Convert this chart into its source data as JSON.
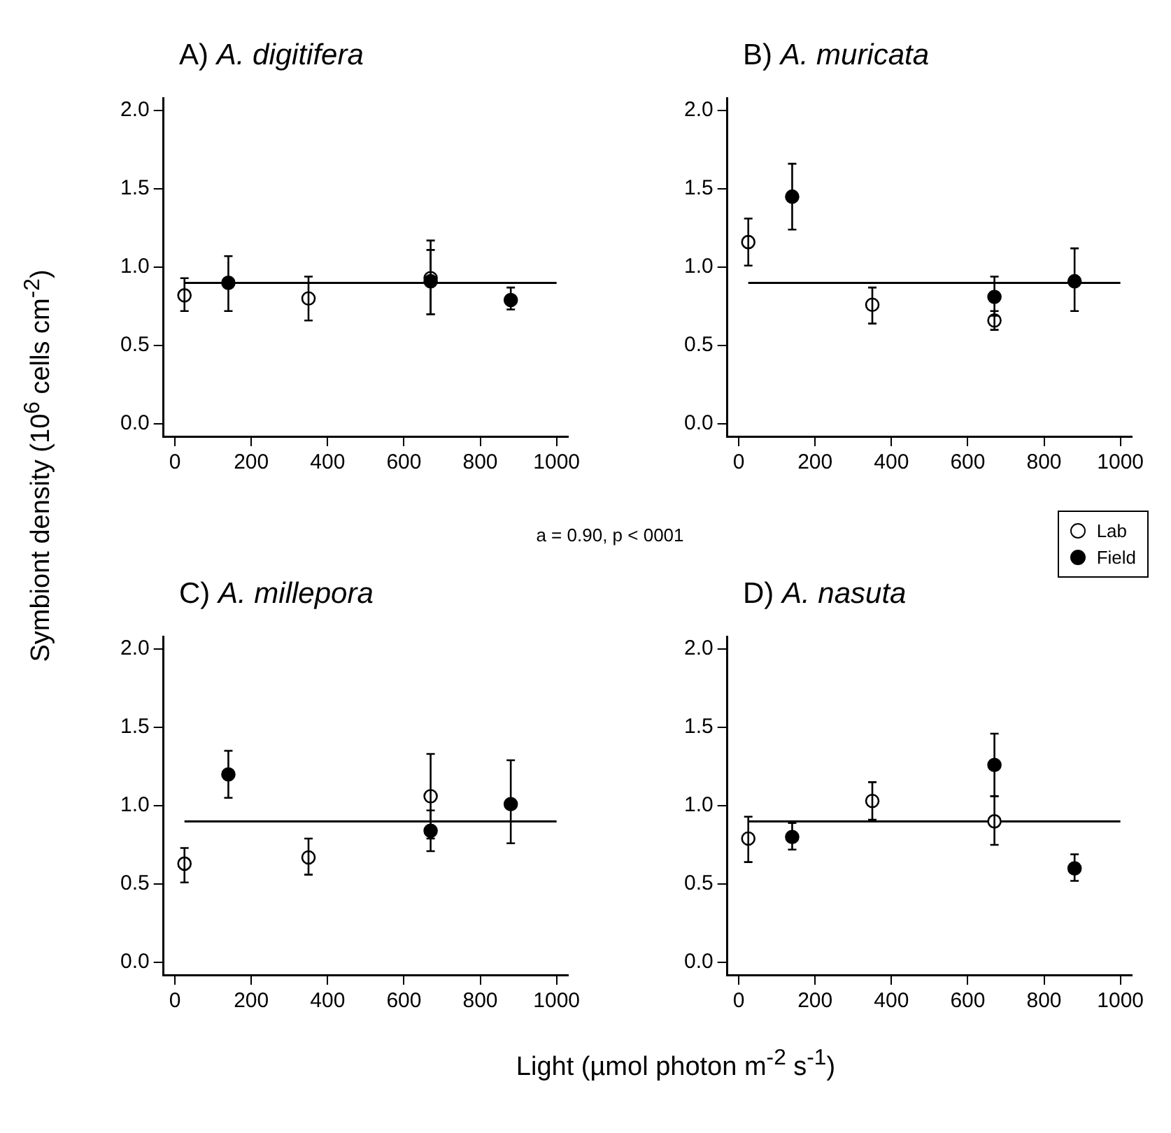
{
  "chart_data": [
    {
      "type": "scatter",
      "title": "A) A. digitifera",
      "ylabel": "Symbiont density (10$^{6}$ cells cm$^{-2}$)",
      "xlim": [
        -30,
        1030
      ],
      "ylim": [
        -0.08,
        2.08
      ],
      "xticks": [
        0,
        200,
        400,
        600,
        800,
        1000
      ],
      "yticks": [
        {
          "value": 0,
          "label": "0.0"
        },
        {
          "value": 0.5,
          "label": "0.5"
        },
        {
          "value": 1,
          "label": "1.0"
        },
        {
          "value": 1.5,
          "label": "1.5"
        },
        {
          "value": 2,
          "label": "2.0"
        }
      ],
      "grid": false,
      "legend": false,
      "marker": "circle",
      "series": [
        {
          "color": "#ffffff",
          "x": [
            25,
            350,
            670
          ],
          "values": [
            0.82,
            0.8,
            0.93
          ],
          "errors": [
            [
              0.72,
              0.93
            ],
            [
              0.66,
              0.94
            ],
            [
              0.7,
              1.17
            ]
          ]
        },
        {
          "color": "#000000",
          "x": [
            140,
            670,
            880
          ],
          "values": [
            0.9,
            0.91,
            0.79
          ],
          "errors": [
            [
              0.72,
              1.07
            ],
            [
              0.7,
              1.11
            ],
            [
              0.73,
              0.87
            ]
          ]
        },
        {
          "type": "line",
          "marker": "none",
          "color": "#000000",
          "x": [
            25,
            1000
          ],
          "values": [
            0.9,
            0.9
          ]
        }
      ]
    },
    {
      "type": "scatter",
      "title": "B) A. muricata",
      "annotations": [
        "a = 0.90, p < 0001"
      ],
      "xlim": [
        -30,
        1030
      ],
      "ylim": [
        -0.08,
        2.08
      ],
      "xticks": [
        0,
        200,
        400,
        600,
        800,
        1000
      ],
      "yticks": [
        {
          "value": 0,
          "label": "0.0"
        },
        {
          "value": 0.5,
          "label": "0.5"
        },
        {
          "value": 1,
          "label": "1.0"
        },
        {
          "value": 1.5,
          "label": "1.5"
        },
        {
          "value": 2,
          "label": "2.0"
        }
      ],
      "grid": false,
      "legend": "bottom right",
      "marker": "circle",
      "series": [
        {
          "name": "Lab",
          "color": "#ffffff",
          "x": [
            25,
            350,
            670
          ],
          "values": [
            1.16,
            0.76,
            0.66
          ],
          "errors": [
            [
              1.01,
              1.31
            ],
            [
              0.64,
              0.87
            ],
            [
              0.6,
              0.72
            ]
          ]
        },
        {
          "name": "Field",
          "color": "#000000",
          "x": [
            140,
            670,
            880
          ],
          "values": [
            1.45,
            0.81,
            0.91
          ],
          "errors": [
            [
              1.24,
              1.66
            ],
            [
              0.69,
              0.94
            ],
            [
              0.72,
              1.12
            ]
          ]
        },
        {
          "type": "line",
          "marker": "none",
          "color": "#000000",
          "x": [
            25,
            1000
          ],
          "values": [
            0.9,
            0.9
          ]
        }
      ]
    },
    {
      "type": "scatter",
      "title": "C) A. millepora",
      "xlabel": "Light (µmol photon m$^{-2}$ s$^{-1}$)",
      "xlim": [
        -30,
        1030
      ],
      "ylim": [
        -0.08,
        2.08
      ],
      "xticks": [
        0,
        200,
        400,
        600,
        800,
        1000
      ],
      "yticks": [
        {
          "value": 0,
          "label": "0.0"
        },
        {
          "value": 0.5,
          "label": "0.5"
        },
        {
          "value": 1,
          "label": "1.0"
        },
        {
          "value": 1.5,
          "label": "1.5"
        },
        {
          "value": 2,
          "label": "2.0"
        }
      ],
      "grid": false,
      "legend": false,
      "marker": "circle",
      "series": [
        {
          "color": "#ffffff",
          "x": [
            25,
            350,
            670
          ],
          "values": [
            0.63,
            0.67,
            1.06
          ],
          "errors": [
            [
              0.51,
              0.73
            ],
            [
              0.56,
              0.79
            ],
            [
              0.79,
              1.33
            ]
          ]
        },
        {
          "color": "#000000",
          "x": [
            140,
            670,
            880
          ],
          "values": [
            1.2,
            0.84,
            1.01
          ],
          "errors": [
            [
              1.05,
              1.35
            ],
            [
              0.71,
              0.97
            ],
            [
              0.76,
              1.29
            ]
          ]
        },
        {
          "type": "line",
          "marker": "none",
          "color": "#000000",
          "x": [
            25,
            1000
          ],
          "values": [
            0.9,
            0.9
          ]
        }
      ]
    },
    {
      "type": "scatter",
      "title": "D) A. nasuta",
      "xlim": [
        -30,
        1030
      ],
      "ylim": [
        -0.08,
        2.08
      ],
      "xticks": [
        0,
        200,
        400,
        600,
        800,
        1000
      ],
      "yticks": [
        {
          "value": 0,
          "label": "0.0"
        },
        {
          "value": 0.5,
          "label": "0.5"
        },
        {
          "value": 1,
          "label": "1.0"
        },
        {
          "value": 1.5,
          "label": "1.5"
        },
        {
          "value": 2,
          "label": "2.0"
        }
      ],
      "grid": false,
      "legend": false,
      "marker": "circle",
      "series": [
        {
          "color": "#ffffff",
          "x": [
            25,
            350,
            670
          ],
          "values": [
            0.79,
            1.03,
            0.9
          ],
          "errors": [
            [
              0.64,
              0.93
            ],
            [
              0.91,
              1.15
            ],
            [
              0.75,
              1.06
            ]
          ]
        },
        {
          "color": "#000000",
          "x": [
            140,
            670,
            880
          ],
          "values": [
            0.8,
            1.26,
            0.6
          ],
          "errors": [
            [
              0.72,
              0.89
            ],
            [
              1.06,
              1.46
            ],
            [
              0.52,
              0.69
            ]
          ]
        },
        {
          "type": "line",
          "marker": "none",
          "color": "#000000",
          "x": [
            25,
            1000
          ],
          "values": [
            0.9,
            0.9
          ]
        }
      ]
    }
  ]
}
